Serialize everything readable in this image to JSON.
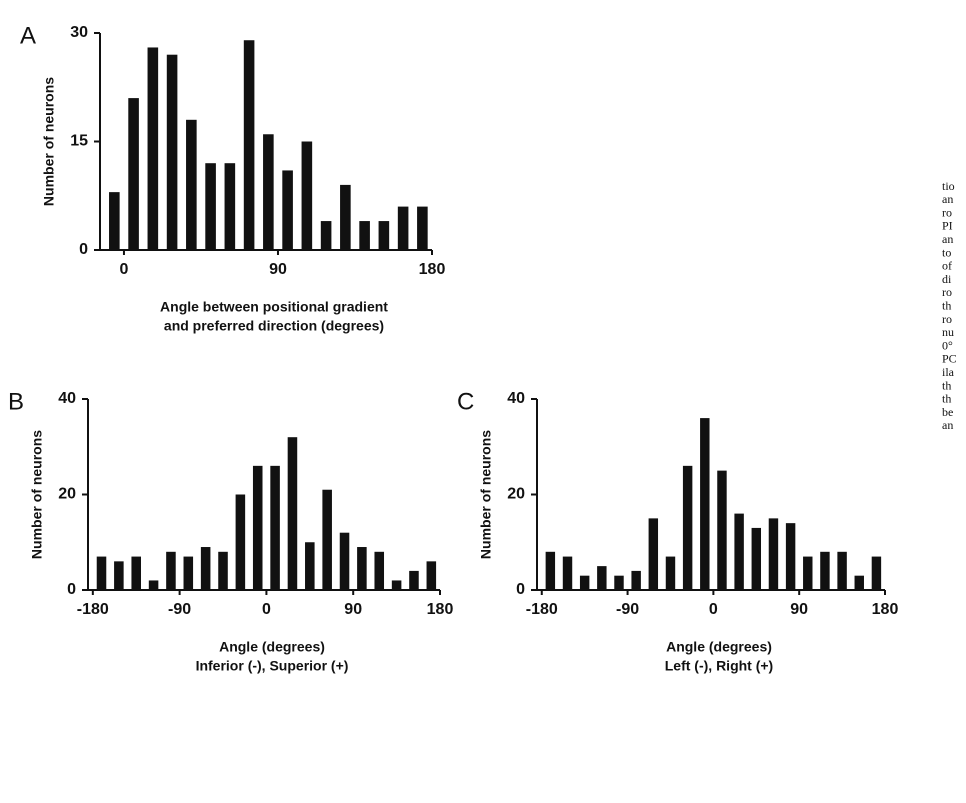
{
  "chart_data": [
    {
      "type": "histogram",
      "panel": "A",
      "ylabel": "Number of neurons",
      "xlabel": [
        "Angle between positional gradient",
        "and preferred direction   (degrees)"
      ],
      "bins": [
        -11.25,
        0,
        11.25,
        22.5,
        33.75,
        45,
        56.25,
        67.5,
        78.75,
        90,
        101.25,
        112.5,
        123.75,
        135,
        146.25,
        157.5,
        168.75,
        180
      ],
      "values": [
        8,
        21,
        28,
        27,
        18,
        12,
        12,
        29,
        16,
        11,
        15,
        4,
        9,
        4,
        4,
        6,
        6
      ],
      "color": "#111111",
      "xlim": [
        -14,
        180
      ],
      "ylim": [
        0,
        30
      ],
      "xticks": [
        0,
        90,
        180
      ],
      "yticks": [
        0,
        15,
        30
      ]
    },
    {
      "type": "histogram",
      "panel": "B",
      "ylabel": "Number of neurons",
      "xlabel": [
        "Angle (degrees)",
        "Inferior (-), Superior (+)"
      ],
      "bins": [
        -180,
        -162,
        -144,
        -126,
        -108,
        -90,
        -72,
        -54,
        -36,
        -18,
        0,
        18,
        36,
        54,
        72,
        90,
        108,
        126,
        144,
        162,
        180
      ],
      "values": [
        7,
        6,
        7,
        2,
        8,
        7,
        9,
        8,
        20,
        26,
        26,
        32,
        10,
        21,
        12,
        9,
        8,
        2,
        4,
        6
      ],
      "color": "#111111",
      "xlim": [
        -185,
        180
      ],
      "ylim": [
        0,
        40
      ],
      "xticks": [
        -180,
        -90,
        0,
        90,
        180
      ],
      "yticks": [
        0,
        20,
        40
      ]
    },
    {
      "type": "histogram",
      "panel": "C",
      "ylabel": "Number of neurons",
      "xlabel": [
        "Angle (degrees)",
        "Left (-), Right (+)"
      ],
      "bins": [
        -180,
        -162,
        -144,
        -126,
        -108,
        -90,
        -72,
        -54,
        -36,
        -18,
        0,
        18,
        36,
        54,
        72,
        90,
        108,
        126,
        144,
        162,
        180
      ],
      "values": [
        8,
        7,
        3,
        5,
        3,
        4,
        15,
        7,
        26,
        36,
        25,
        16,
        13,
        15,
        14,
        7,
        8,
        8,
        3,
        7
      ],
      "color": "#111111",
      "xlim": [
        -185,
        180
      ],
      "ylim": [
        0,
        40
      ],
      "xticks": [
        -180,
        -90,
        0,
        90,
        180
      ],
      "yticks": [
        0,
        20,
        40
      ]
    }
  ],
  "caption_fragments": [
    "tio",
    "an",
    "ro",
    "PI",
    "an",
    "to",
    "of",
    "di",
    "ro",
    "th",
    "ro",
    "nu",
    "0°",
    "PC",
    "ila",
    "th",
    "th",
    "be",
    "an"
  ]
}
